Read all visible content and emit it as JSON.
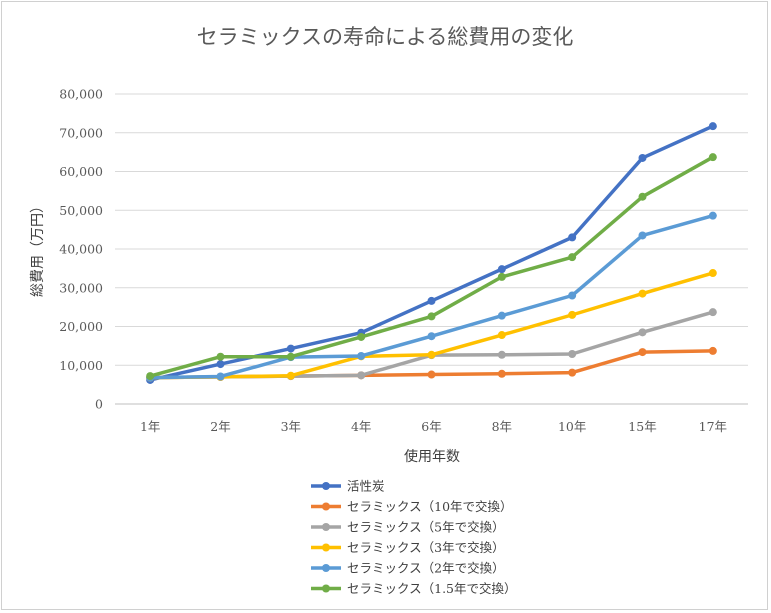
{
  "chart_data": {
    "type": "line",
    "title": "セラミックスの寿命による総費用の変化",
    "xlabel": "使用年数",
    "ylabel": "総費用（万円）",
    "categories": [
      "1年",
      "2年",
      "3年",
      "4年",
      "6年",
      "8年",
      "10年",
      "15年",
      "17年"
    ],
    "ylim": [
      0,
      80000
    ],
    "yticks": [
      "0",
      "10,000",
      "20,000",
      "30,000",
      "40,000",
      "50,000",
      "60,000",
      "70,000",
      "80,000"
    ],
    "grid": true,
    "legend_position": "bottom",
    "series": [
      {
        "name": "活性炭",
        "color": "#4472c4",
        "values": [
          6200,
          10300,
          14300,
          18400,
          26600,
          34800,
          43000,
          63500,
          71700
        ]
      },
      {
        "name": "セラミックス（10年で交換）",
        "color": "#ed7d31",
        "values": [
          6800,
          7000,
          7200,
          7400,
          7600,
          7800,
          8100,
          13400,
          13700
        ]
      },
      {
        "name": "セラミックス（5年で交換）",
        "color": "#a5a5a5",
        "values": [
          6800,
          7000,
          7200,
          7400,
          12600,
          12700,
          12900,
          18500,
          23700
        ]
      },
      {
        "name": "セラミックス（3年で交換）",
        "color": "#ffc000",
        "values": [
          6800,
          7000,
          7300,
          12300,
          12700,
          17800,
          23000,
          28500,
          33800
        ]
      },
      {
        "name": "セラミックス（2年で交換）",
        "color": "#5b9bd5",
        "values": [
          6800,
          7100,
          12100,
          12400,
          17500,
          22800,
          28000,
          43500,
          48600
        ]
      },
      {
        "name": "セラミックス（1.5年で交換）",
        "color": "#70ad47",
        "values": [
          7200,
          12200,
          12200,
          17300,
          22600,
          32800,
          37900,
          53500,
          63700
        ]
      }
    ]
  }
}
